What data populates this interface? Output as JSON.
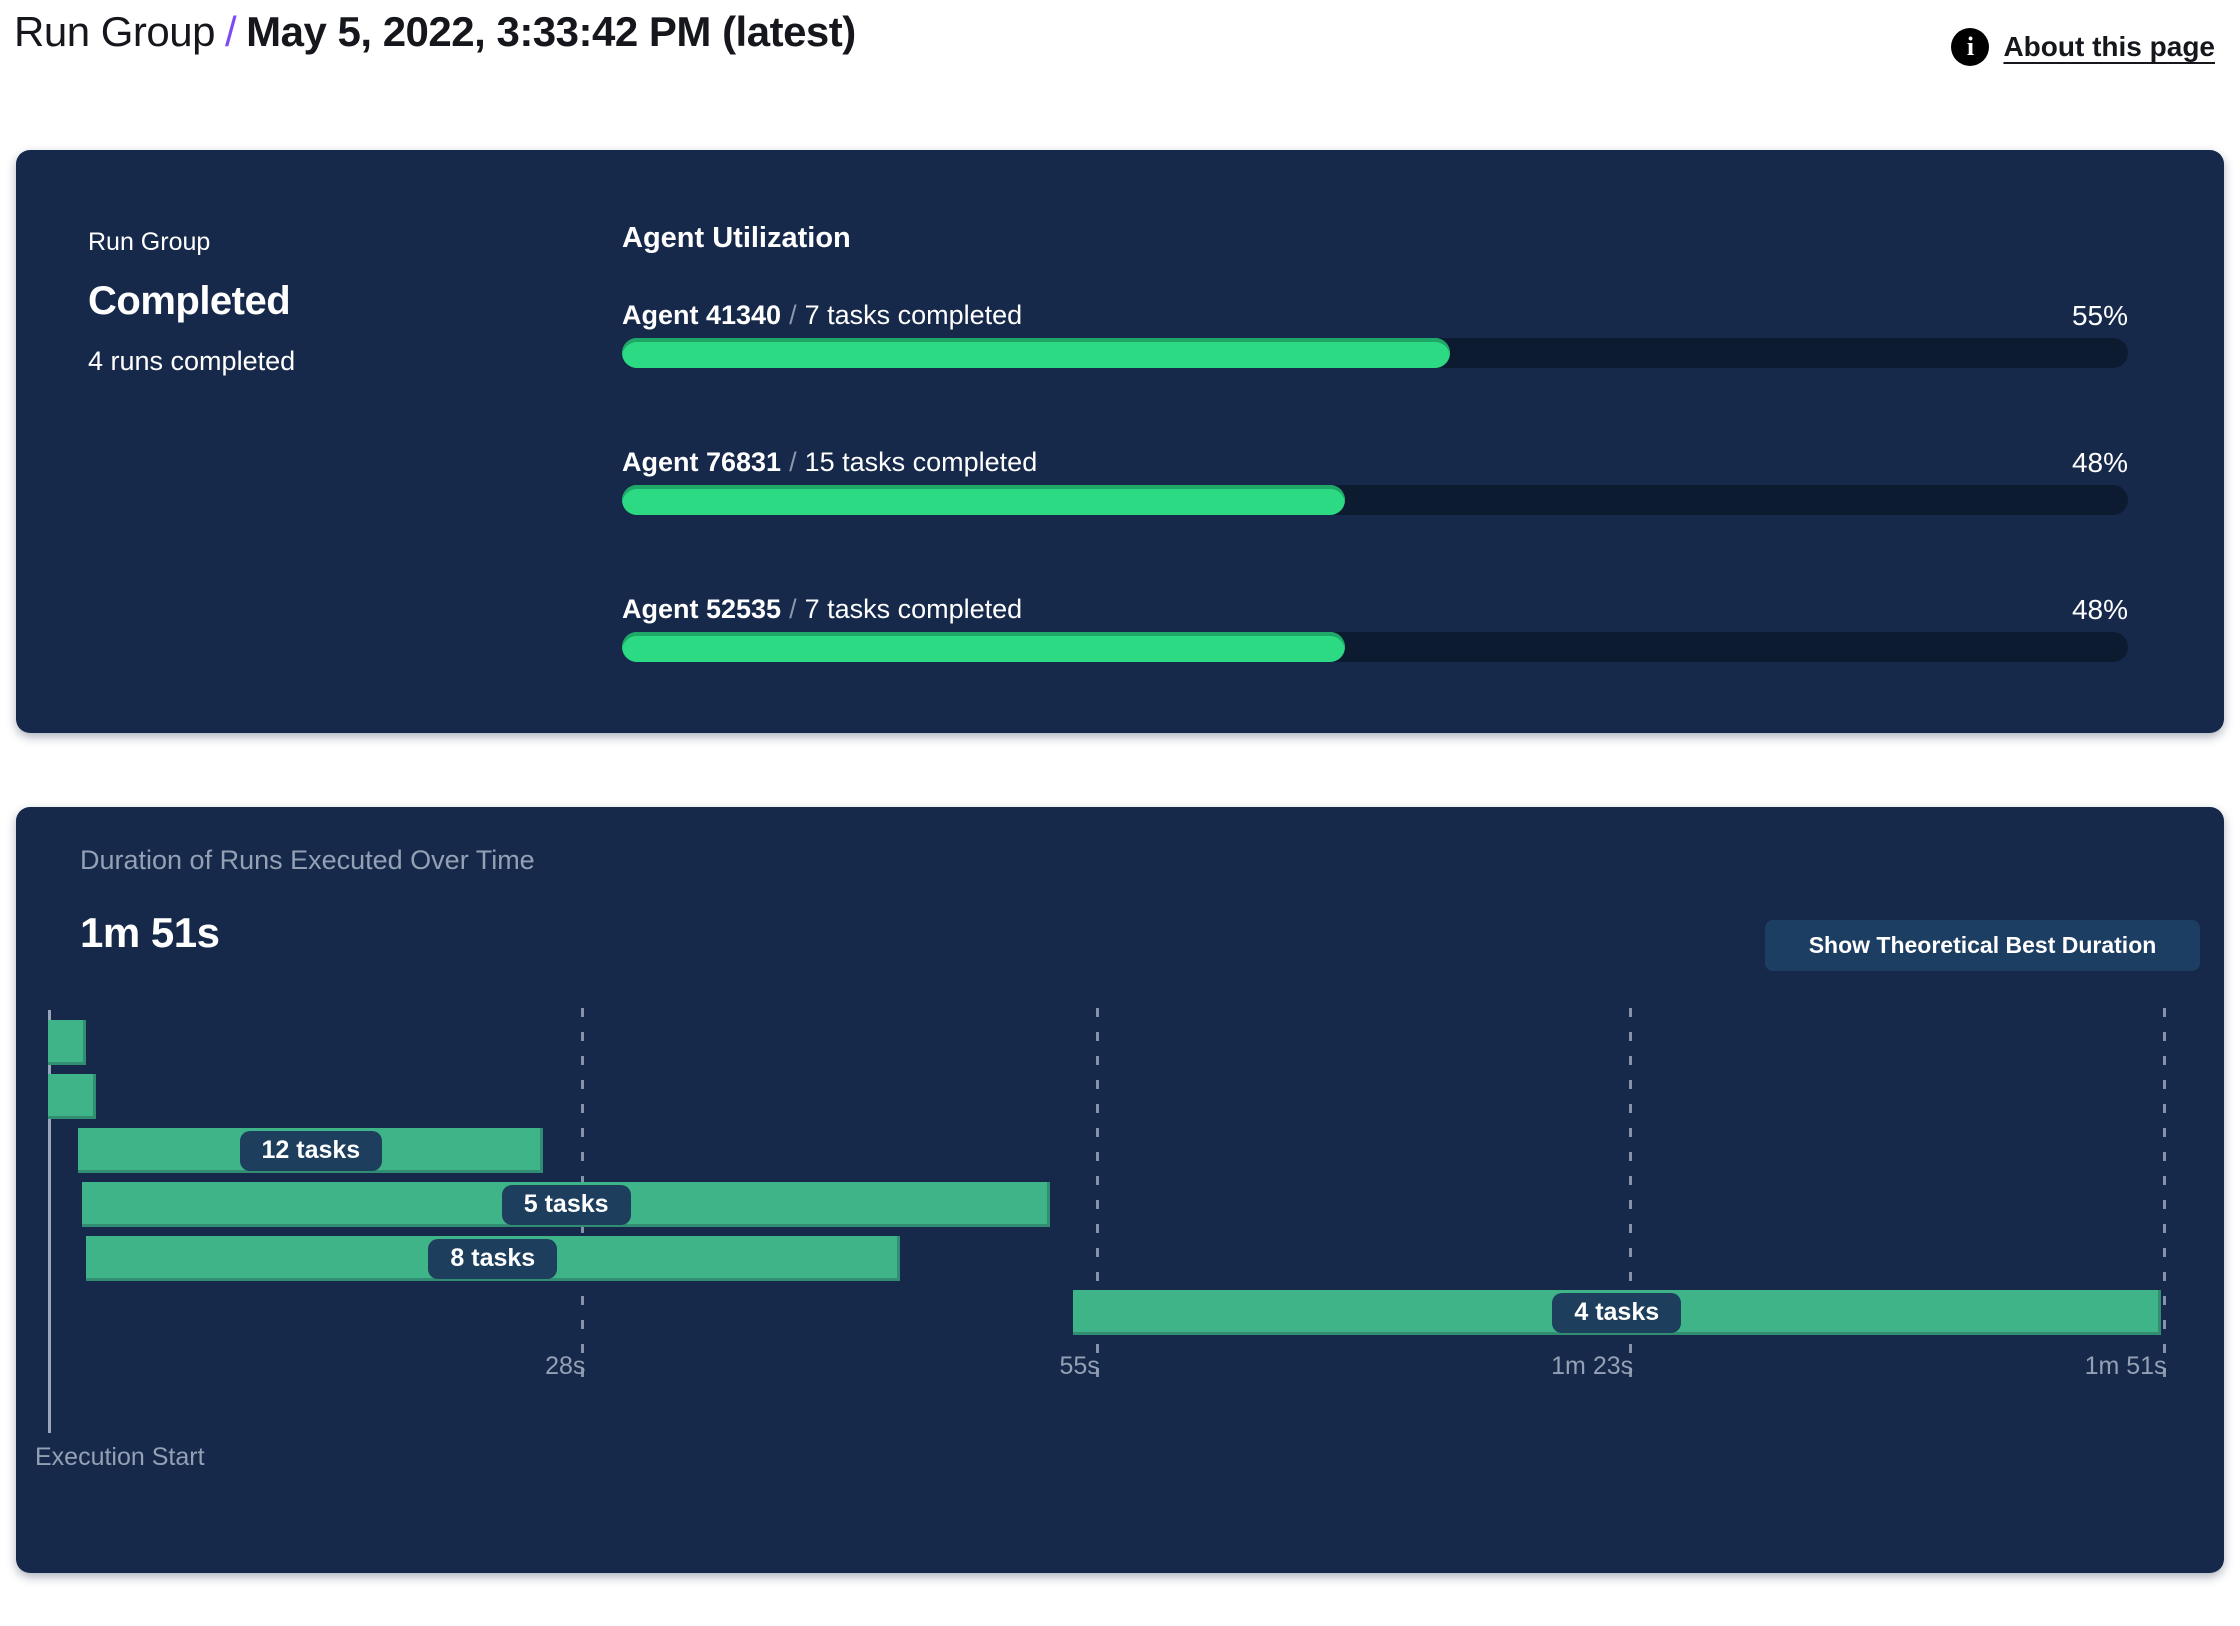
{
  "header": {
    "breadcrumb_root": "Run Group",
    "separator": "/",
    "title": "May 5, 2022, 3:33:42 PM (latest)",
    "about_link": "About this page",
    "info_icon_glyph": "i"
  },
  "colors": {
    "card_bg": "#16294a",
    "progress_green": "#2dda84",
    "progress_rim_green": "#1fa768",
    "gantt_green": "#3fb489",
    "track_bg": "#0d1b30",
    "pill_bg": "#1e3e5e",
    "button_bg": "#1d3e63",
    "muted_text": "#94a0b4",
    "accent_purple": "#7c4bf2"
  },
  "run_summary": {
    "label": "Run Group",
    "status": "Completed",
    "runs_completed": "4 runs completed"
  },
  "agent_utilization": {
    "heading": "Agent Utilization",
    "agents": [
      {
        "name": "Agent 41340",
        "tasks": "7 tasks completed",
        "percent": 55
      },
      {
        "name": "Agent 76831",
        "tasks": "15 tasks completed",
        "percent": 48
      },
      {
        "name": "Agent 52535",
        "tasks": "7 tasks completed",
        "percent": 48
      }
    ]
  },
  "duration_panel": {
    "subtitle": "Duration of Runs Executed Over Time",
    "total_duration": "1m 51s",
    "button_label": "Show Theoretical Best Duration",
    "execution_start_label": "Execution Start"
  },
  "chart_data": [
    {
      "type": "bar",
      "title": "Agent Utilization",
      "categories": [
        "Agent 41340",
        "Agent 76831",
        "Agent 52535"
      ],
      "values": [
        55,
        48,
        48
      ],
      "value_unit": "percent",
      "annotations": [
        "7 tasks completed",
        "15 tasks completed",
        "7 tasks completed"
      ],
      "xlim": [
        0,
        100
      ]
    },
    {
      "type": "gantt",
      "title": "Duration of Runs Executed Over Time",
      "total_duration_label": "1m 51s",
      "total_duration_seconds": 111,
      "x_unit": "seconds",
      "x_ticks": [
        {
          "seconds": 28,
          "label": "28s"
        },
        {
          "seconds": 55,
          "label": "55s"
        },
        {
          "seconds": 83,
          "label": "1m 23s"
        },
        {
          "seconds": 111,
          "label": "1m 51s"
        }
      ],
      "runs": [
        {
          "start_seconds": 0,
          "end_seconds": 2,
          "tasks_label": ""
        },
        {
          "start_seconds": 0,
          "end_seconds": 2.5,
          "tasks_label": ""
        },
        {
          "start_seconds": 1.6,
          "end_seconds": 26,
          "tasks_label": "12 tasks"
        },
        {
          "start_seconds": 1.8,
          "end_seconds": 52.6,
          "tasks_label": "5 tasks"
        },
        {
          "start_seconds": 2,
          "end_seconds": 44.7,
          "tasks_label": "8 tasks"
        },
        {
          "start_seconds": 53.8,
          "end_seconds": 110.9,
          "tasks_label": "4 tasks"
        }
      ],
      "axis_label": "Execution Start",
      "grid": "dashed-vertical"
    }
  ]
}
